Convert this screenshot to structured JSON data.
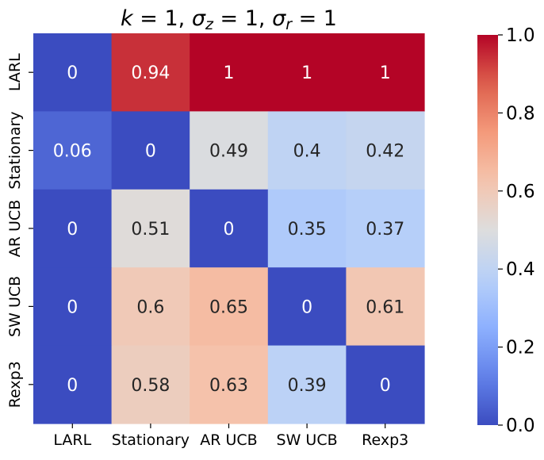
{
  "chart_data": {
    "type": "heatmap",
    "title_parts": [
      {
        "text": "k",
        "style": "italic"
      },
      {
        "text": " = 1, ",
        "style": "normal"
      },
      {
        "text": "σ",
        "style": "italic"
      },
      {
        "text": "z",
        "style": "italic-sub"
      },
      {
        "text": " = 1, ",
        "style": "normal"
      },
      {
        "text": "σ",
        "style": "italic"
      },
      {
        "text": "r",
        "style": "italic-sub"
      },
      {
        "text": " = 1",
        "style": "normal"
      }
    ],
    "rows": [
      "LARL",
      "Stationary",
      "AR UCB",
      "SW UCB",
      "Rexp3"
    ],
    "columns": [
      "LARL",
      "Stationary",
      "AR UCB",
      "SW UCB",
      "Rexp3"
    ],
    "values": [
      [
        0,
        0.94,
        1,
        1,
        1
      ],
      [
        0.06,
        0,
        0.49,
        0.4,
        0.42
      ],
      [
        0,
        0.51,
        0,
        0.35,
        0.37
      ],
      [
        0,
        0.6,
        0.65,
        0,
        0.61
      ],
      [
        0,
        0.58,
        0.63,
        0.39,
        0
      ]
    ],
    "cell_labels": [
      [
        "0",
        "0.94",
        "1",
        "1",
        "1"
      ],
      [
        "0.06",
        "0",
        "0.49",
        "0.4",
        "0.42"
      ],
      [
        "0",
        "0.51",
        "0",
        "0.35",
        "0.37"
      ],
      [
        "0",
        "0.6",
        "0.65",
        "0",
        "0.61"
      ],
      [
        "0",
        "0.58",
        "0.63",
        "0.39",
        "0"
      ]
    ],
    "colormap": "coolwarm",
    "vmin": 0.0,
    "vmax": 1.0,
    "colorbar_ticks": [
      0.0,
      0.2,
      0.4,
      0.6,
      0.8,
      1.0
    ],
    "colorbar_tick_labels": [
      "0.0",
      "0.2",
      "0.4",
      "0.6",
      "0.8",
      "1.0"
    ]
  }
}
